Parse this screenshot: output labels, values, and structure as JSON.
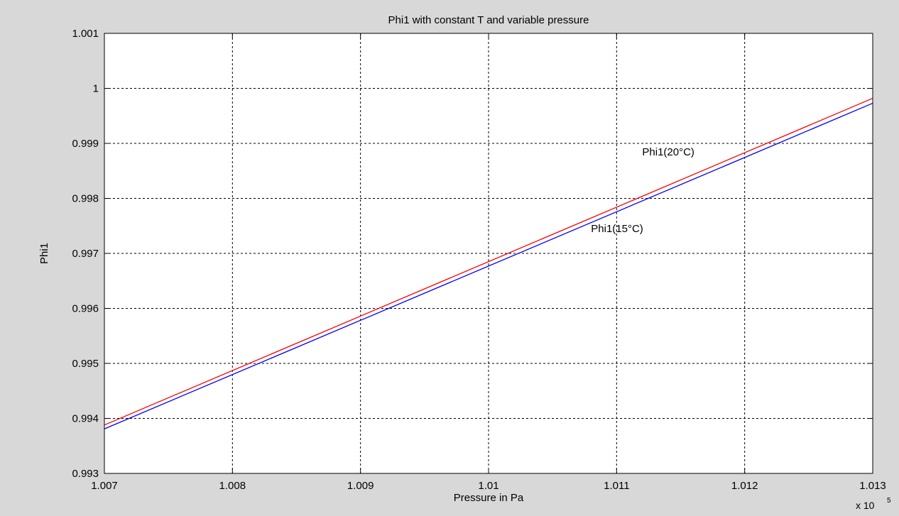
{
  "chart_data": {
    "type": "line",
    "title": "Phi1 with constant T and variable pressure",
    "xlabel": "Pressure in Pa",
    "ylabel": "Phi1",
    "x_multiplier": "x 10",
    "x_multiplier_exponent": "5",
    "xlim": [
      1.007,
      1.013
    ],
    "ylim": [
      0.993,
      1.001
    ],
    "grid": true,
    "x_ticks": [
      1.007,
      1.008,
      1.009,
      1.01,
      1.011,
      1.012,
      1.013
    ],
    "x_tick_labels": [
      "1.007",
      "1.008",
      "1.009",
      "1.01",
      "1.011",
      "1.012",
      "1.013"
    ],
    "y_ticks": [
      0.993,
      0.994,
      0.995,
      0.996,
      0.997,
      0.998,
      0.999,
      1,
      1.001
    ],
    "y_tick_labels": [
      "0.993",
      "0.994",
      "0.995",
      "0.996",
      "0.997",
      "0.998",
      "0.999",
      "1",
      "1.001"
    ],
    "series": [
      {
        "color": "#ff0000",
        "x": [
          1.007,
          1.013
        ],
        "y": [
          0.99388,
          0.99982
        ]
      },
      {
        "color": "#0000ff",
        "x": [
          1.007,
          1.013
        ],
        "y": [
          0.99381,
          0.99973
        ]
      }
    ],
    "annotations": [
      {
        "text": "Phi1(20°C)",
        "x": 1.0112,
        "y": 0.99878
      },
      {
        "text": "Phi1(15°C)",
        "x": 1.0108,
        "y": 0.99739
      }
    ]
  }
}
